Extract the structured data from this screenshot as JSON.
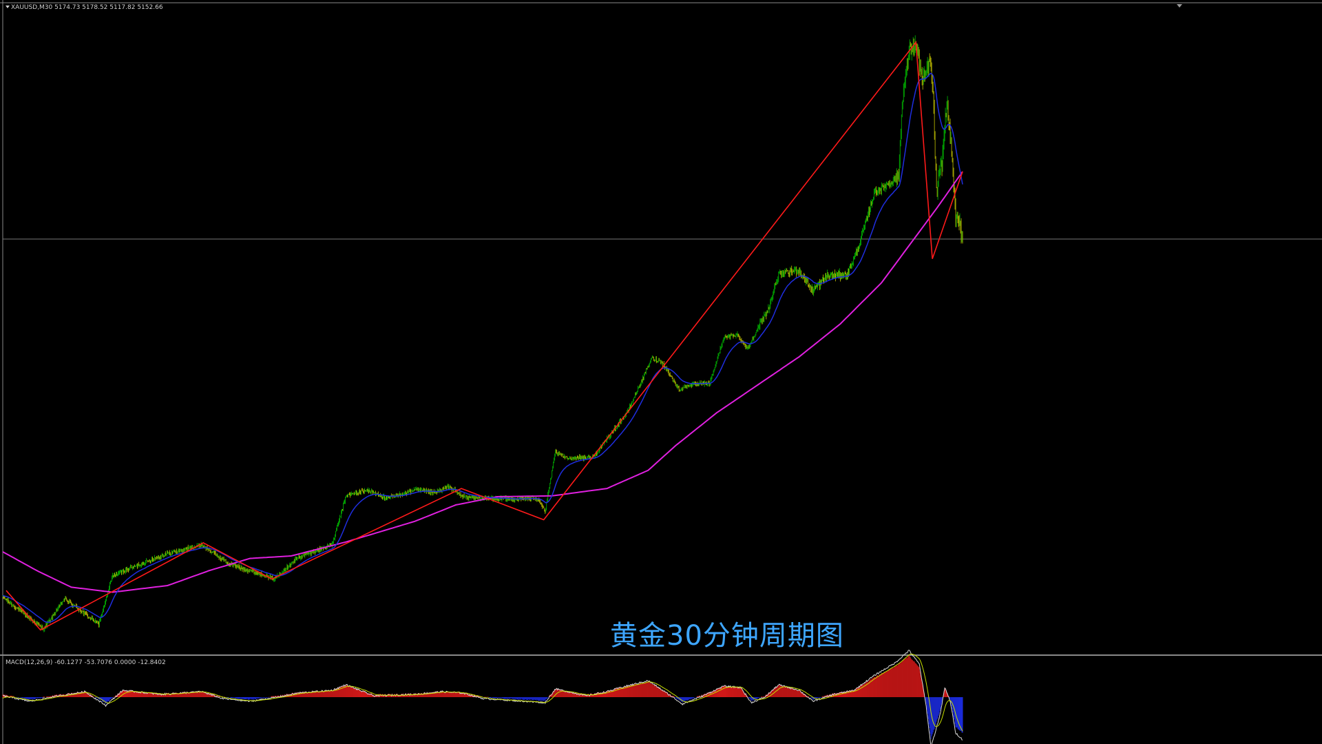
{
  "header": {
    "symbol": "XAUUSD,M30",
    "ohlc": "5174.73 5178.52 5117.82 5152.66"
  },
  "macd": {
    "label": "MACD(12,26,9) -60.1277 -53.7076 0.0000 -12.8402"
  },
  "caption": "黄金30分钟周期图",
  "colors": {
    "background": "#000000",
    "bull_candle": "#00c000",
    "bear_candle": "#c8c800",
    "zigzag": "#ff1a1a",
    "ma_fast": "#1f2ee0",
    "ma_slow": "#e020e0",
    "macd_pos": "#d01818",
    "macd_neg": "#1a2ad8",
    "macd_line": "#d8d8d8",
    "signal_line": "#c8e000",
    "separator": "#8a8a8a"
  },
  "chart_data": {
    "type": "candlestick",
    "symbol": "XAUUSD",
    "timeframe": "M30",
    "last_bar": {
      "open": 5174.73,
      "high": 5178.52,
      "low": 5117.82,
      "close": 5152.66
    },
    "price_anchors": [
      [
        0,
        4188
      ],
      [
        20,
        4175
      ],
      [
        60,
        4149
      ],
      [
        90,
        4186
      ],
      [
        140,
        4155
      ],
      [
        160,
        4214
      ],
      [
        235,
        4240
      ],
      [
        290,
        4251
      ],
      [
        330,
        4228
      ],
      [
        380,
        4215
      ],
      [
        395,
        4210
      ],
      [
        430,
        4236
      ],
      [
        480,
        4252
      ],
      [
        500,
        4311
      ],
      [
        530,
        4318
      ],
      [
        560,
        4308
      ],
      [
        600,
        4318
      ],
      [
        630,
        4315
      ],
      [
        650,
        4322
      ],
      [
        670,
        4310
      ],
      [
        700,
        4308
      ],
      [
        740,
        4307
      ],
      [
        780,
        4308
      ],
      [
        790,
        4292
      ],
      [
        805,
        4364
      ],
      [
        820,
        4357
      ],
      [
        860,
        4358
      ],
      [
        880,
        4380
      ],
      [
        910,
        4413
      ],
      [
        945,
        4478
      ],
      [
        960,
        4474
      ],
      [
        985,
        4440
      ],
      [
        1000,
        4446
      ],
      [
        1030,
        4448
      ],
      [
        1050,
        4503
      ],
      [
        1070,
        4507
      ],
      [
        1085,
        4490
      ],
      [
        1100,
        4515
      ],
      [
        1115,
        4538
      ],
      [
        1130,
        4580
      ],
      [
        1160,
        4585
      ],
      [
        1180,
        4560
      ],
      [
        1200,
        4578
      ],
      [
        1230,
        4580
      ],
      [
        1245,
        4610
      ],
      [
        1270,
        4680
      ],
      [
        1290,
        4690
      ],
      [
        1305,
        4700
      ],
      [
        1310,
        4790
      ],
      [
        1320,
        4850
      ],
      [
        1330,
        4860
      ],
      [
        1340,
        4812
      ],
      [
        1350,
        4840
      ],
      [
        1355,
        4802
      ],
      [
        1360,
        4680
      ],
      [
        1368,
        4715
      ],
      [
        1375,
        4790
      ],
      [
        1382,
        4730
      ],
      [
        1388,
        4650
      ],
      [
        1394,
        4640
      ],
      [
        1398,
        4620
      ]
    ],
    "zigzag": [
      [
        5,
        4196
      ],
      [
        55,
        4148
      ],
      [
        292,
        4254
      ],
      [
        392,
        4210
      ],
      [
        668,
        4320
      ],
      [
        788,
        4282
      ],
      [
        1330,
        4862
      ],
      [
        1354,
        4599
      ],
      [
        1398,
        4705
      ]
    ],
    "ma_slow_anchors": [
      [
        0,
        4243
      ],
      [
        50,
        4220
      ],
      [
        100,
        4200
      ],
      [
        160,
        4194
      ],
      [
        240,
        4202
      ],
      [
        300,
        4220
      ],
      [
        360,
        4235
      ],
      [
        420,
        4238
      ],
      [
        500,
        4255
      ],
      [
        600,
        4280
      ],
      [
        660,
        4300
      ],
      [
        720,
        4310
      ],
      [
        800,
        4311
      ],
      [
        880,
        4320
      ],
      [
        940,
        4342
      ],
      [
        980,
        4372
      ],
      [
        1040,
        4412
      ],
      [
        1100,
        4446
      ],
      [
        1160,
        4480
      ],
      [
        1220,
        4520
      ],
      [
        1280,
        4570
      ],
      [
        1320,
        4615
      ],
      [
        1360,
        4660
      ],
      [
        1398,
        4705
      ]
    ],
    "macd_anchors": [
      [
        0,
        2
      ],
      [
        40,
        -2
      ],
      [
        70,
        1
      ],
      [
        120,
        5
      ],
      [
        150,
        -5
      ],
      [
        175,
        6
      ],
      [
        230,
        3
      ],
      [
        290,
        5
      ],
      [
        320,
        0
      ],
      [
        360,
        -2
      ],
      [
        400,
        1
      ],
      [
        430,
        4
      ],
      [
        480,
        6
      ],
      [
        500,
        10
      ],
      [
        540,
        2
      ],
      [
        600,
        3
      ],
      [
        640,
        5
      ],
      [
        670,
        4
      ],
      [
        700,
        0
      ],
      [
        760,
        -2
      ],
      [
        790,
        -3
      ],
      [
        805,
        7
      ],
      [
        850,
        2
      ],
      [
        880,
        5
      ],
      [
        900,
        8
      ],
      [
        940,
        13
      ],
      [
        970,
        3
      ],
      [
        990,
        -4
      ],
      [
        1020,
        2
      ],
      [
        1050,
        9
      ],
      [
        1075,
        8
      ],
      [
        1090,
        -3
      ],
      [
        1110,
        1
      ],
      [
        1130,
        10
      ],
      [
        1160,
        6
      ],
      [
        1180,
        -2
      ],
      [
        1210,
        3
      ],
      [
        1240,
        6
      ],
      [
        1270,
        17
      ],
      [
        1300,
        26
      ],
      [
        1320,
        35
      ],
      [
        1335,
        25
      ],
      [
        1345,
        -6
      ],
      [
        1352,
        -35
      ],
      [
        1358,
        -25
      ],
      [
        1366,
        -10
      ],
      [
        1372,
        8
      ],
      [
        1380,
        -2
      ],
      [
        1388,
        -25
      ],
      [
        1398,
        -30
      ]
    ],
    "y_range": [
      4120,
      4880
    ],
    "bar_count": 1400
  }
}
